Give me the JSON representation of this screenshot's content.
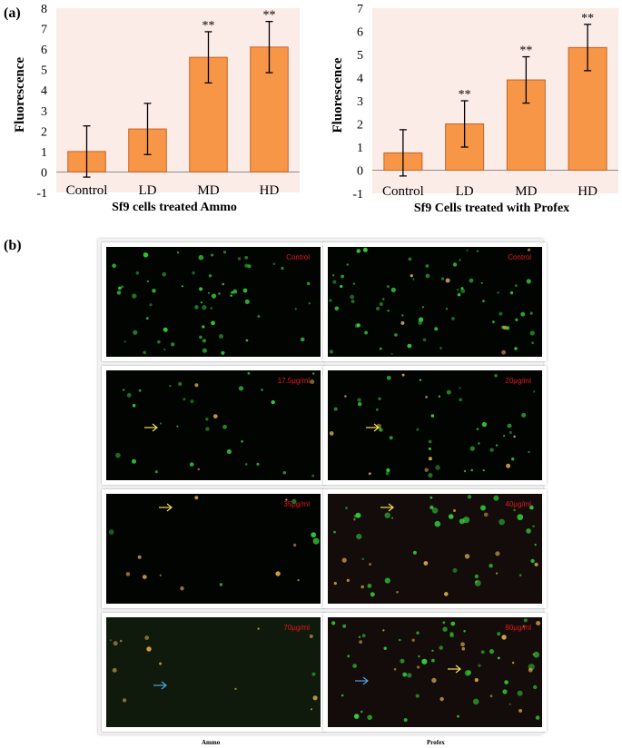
{
  "panel_labels": {
    "a": "(a)",
    "b": "(b)"
  },
  "colors": {
    "bar_fill": "#f79646",
    "bar_stroke": "#c0652a",
    "plot_bg": "#fcece8",
    "micro_bg": "#020402",
    "green_cell": "#35d23a",
    "orange_cell": "#d8a84a",
    "yellow_arrow": "#f0e05a",
    "blue_arrow": "#4fa3e0",
    "label_red": "#e0191f"
  },
  "chart_data": [
    {
      "type": "bar",
      "title": "Sf9 cells treated Ammo",
      "xlabel": "Sf9 cells treated Ammo",
      "ylabel": "Fluorescence",
      "categories": [
        "Control",
        "LD",
        "MD",
        "HD"
      ],
      "values": [
        1.0,
        2.1,
        5.6,
        6.1
      ],
      "errors": [
        1.25,
        1.25,
        1.25,
        1.25
      ],
      "significance": [
        "",
        "",
        "**",
        "**"
      ],
      "ylim": [
        -1,
        8
      ],
      "yticks": [
        "-1",
        "0",
        "1",
        "2",
        "3",
        "4",
        "5",
        "6",
        "7",
        "8"
      ],
      "grid": false
    },
    {
      "type": "bar",
      "title": "Sf9 Cells treated with Profex",
      "xlabel": "Sf9 Cells treated with Profex",
      "ylabel": "Fluorescence",
      "categories": [
        "Control",
        "LD",
        "MD",
        "HD"
      ],
      "values": [
        0.75,
        2.0,
        3.9,
        5.3
      ],
      "errors": [
        1.0,
        1.0,
        1.0,
        1.0
      ],
      "significance": [
        "",
        "**",
        "**",
        "**"
      ],
      "ylim": [
        -1,
        7
      ],
      "yticks": [
        "-1",
        "0",
        "1",
        "2",
        "3",
        "4",
        "5",
        "6",
        "7"
      ],
      "grid": false
    }
  ],
  "micrographs": {
    "columns": [
      "Ammo",
      "Profex"
    ],
    "rows": [
      {
        "ammo_label": "Control",
        "profex_label": "Control",
        "ammo_arrow": "",
        "profex_arrow": ""
      },
      {
        "ammo_label": "17.5μg/ml",
        "profex_label": "20μg/ml",
        "ammo_arrow": "yellow",
        "profex_arrow": "yellow"
      },
      {
        "ammo_label": "35μg/ml",
        "profex_label": "40μg/ml",
        "ammo_arrow": "yellow",
        "profex_arrow": "yellow"
      },
      {
        "ammo_label": "70μg/ml",
        "profex_label": "80μg/ml",
        "ammo_arrow": "blue",
        "profex_arrow": "yellow+blue"
      }
    ]
  }
}
